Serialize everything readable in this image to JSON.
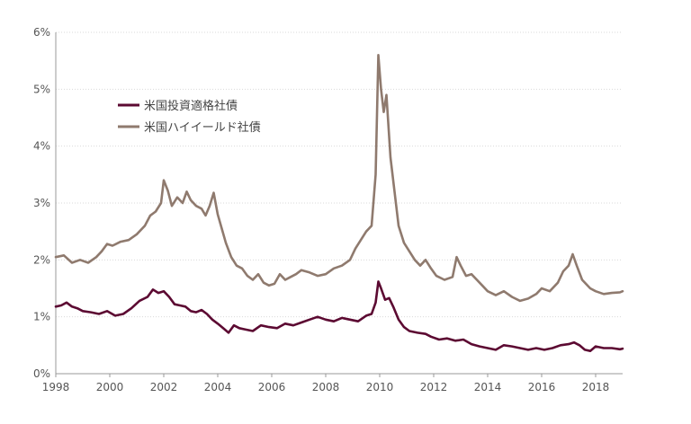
{
  "chart_data": {
    "type": "line",
    "title": "",
    "xlabel": "",
    "ylabel": "",
    "xlim": [
      1998,
      2019
    ],
    "ylim": [
      0,
      6
    ],
    "x_ticks": [
      1998,
      2000,
      2002,
      2004,
      2006,
      2008,
      2010,
      2012,
      2014,
      2016,
      2018
    ],
    "x_tick_labels": [
      "1998",
      "2000",
      "2002",
      "2004",
      "2006",
      "2008",
      "2010",
      "2012",
      "2014",
      "2016",
      "2018"
    ],
    "y_ticks": [
      0,
      1,
      2,
      3,
      4,
      5,
      6
    ],
    "y_tick_labels": [
      "0%",
      "1%",
      "2%",
      "3%",
      "4%",
      "5%",
      "6%"
    ],
    "grid": "horizontal",
    "legend_position": "top-left",
    "series": [
      {
        "name": "米国投資適格社債",
        "color": "#5c0a32",
        "points": [
          [
            1998.0,
            1.18
          ],
          [
            1998.2,
            1.2
          ],
          [
            1998.4,
            1.25
          ],
          [
            1998.6,
            1.18
          ],
          [
            1998.8,
            1.15
          ],
          [
            1999.0,
            1.1
          ],
          [
            1999.3,
            1.08
          ],
          [
            1999.6,
            1.05
          ],
          [
            1999.9,
            1.1
          ],
          [
            2000.2,
            1.02
          ],
          [
            2000.5,
            1.05
          ],
          [
            2000.8,
            1.15
          ],
          [
            2001.1,
            1.28
          ],
          [
            2001.4,
            1.35
          ],
          [
            2001.6,
            1.48
          ],
          [
            2001.8,
            1.42
          ],
          [
            2002.0,
            1.45
          ],
          [
            2002.2,
            1.35
          ],
          [
            2002.4,
            1.22
          ],
          [
            2002.6,
            1.2
          ],
          [
            2002.8,
            1.18
          ],
          [
            2003.0,
            1.1
          ],
          [
            2003.2,
            1.08
          ],
          [
            2003.4,
            1.12
          ],
          [
            2003.6,
            1.05
          ],
          [
            2003.8,
            0.95
          ],
          [
            2004.0,
            0.88
          ],
          [
            2004.2,
            0.8
          ],
          [
            2004.4,
            0.72
          ],
          [
            2004.6,
            0.85
          ],
          [
            2004.8,
            0.8
          ],
          [
            2005.0,
            0.78
          ],
          [
            2005.3,
            0.75
          ],
          [
            2005.6,
            0.85
          ],
          [
            2005.9,
            0.82
          ],
          [
            2006.2,
            0.8
          ],
          [
            2006.5,
            0.88
          ],
          [
            2006.8,
            0.85
          ],
          [
            2007.1,
            0.9
          ],
          [
            2007.4,
            0.95
          ],
          [
            2007.7,
            1.0
          ],
          [
            2008.0,
            0.95
          ],
          [
            2008.3,
            0.92
          ],
          [
            2008.6,
            0.98
          ],
          [
            2008.9,
            0.95
          ],
          [
            2009.2,
            0.92
          ],
          [
            2009.5,
            1.02
          ],
          [
            2009.7,
            1.05
          ],
          [
            2009.85,
            1.25
          ],
          [
            2009.95,
            1.62
          ],
          [
            2010.05,
            1.5
          ],
          [
            2010.2,
            1.3
          ],
          [
            2010.35,
            1.33
          ],
          [
            2010.5,
            1.18
          ],
          [
            2010.7,
            0.95
          ],
          [
            2010.9,
            0.82
          ],
          [
            2011.1,
            0.75
          ],
          [
            2011.4,
            0.72
          ],
          [
            2011.7,
            0.7
          ],
          [
            2011.9,
            0.65
          ],
          [
            2012.2,
            0.6
          ],
          [
            2012.5,
            0.62
          ],
          [
            2012.8,
            0.58
          ],
          [
            2013.1,
            0.6
          ],
          [
            2013.4,
            0.52
          ],
          [
            2013.7,
            0.48
          ],
          [
            2014.0,
            0.45
          ],
          [
            2014.3,
            0.42
          ],
          [
            2014.6,
            0.5
          ],
          [
            2014.9,
            0.48
          ],
          [
            2015.2,
            0.45
          ],
          [
            2015.5,
            0.42
          ],
          [
            2015.8,
            0.45
          ],
          [
            2016.1,
            0.42
          ],
          [
            2016.4,
            0.45
          ],
          [
            2016.7,
            0.5
          ],
          [
            2017.0,
            0.52
          ],
          [
            2017.2,
            0.55
          ],
          [
            2017.4,
            0.5
          ],
          [
            2017.6,
            0.42
          ],
          [
            2017.8,
            0.4
          ],
          [
            2018.0,
            0.48
          ],
          [
            2018.3,
            0.45
          ],
          [
            2018.6,
            0.45
          ],
          [
            2018.9,
            0.43
          ],
          [
            2019.0,
            0.44
          ]
        ]
      },
      {
        "name": "米国ハイイールド社債",
        "color": "#8f7a6e",
        "points": [
          [
            1998.0,
            2.05
          ],
          [
            1998.3,
            2.08
          ],
          [
            1998.6,
            1.95
          ],
          [
            1998.9,
            2.0
          ],
          [
            1999.2,
            1.95
          ],
          [
            1999.5,
            2.05
          ],
          [
            1999.7,
            2.15
          ],
          [
            1999.9,
            2.28
          ],
          [
            2000.1,
            2.25
          ],
          [
            2000.4,
            2.32
          ],
          [
            2000.7,
            2.35
          ],
          [
            2001.0,
            2.45
          ],
          [
            2001.3,
            2.6
          ],
          [
            2001.5,
            2.78
          ],
          [
            2001.7,
            2.85
          ],
          [
            2001.9,
            3.0
          ],
          [
            2002.0,
            3.4
          ],
          [
            2002.15,
            3.22
          ],
          [
            2002.3,
            2.95
          ],
          [
            2002.5,
            3.1
          ],
          [
            2002.7,
            3.0
          ],
          [
            2002.85,
            3.2
          ],
          [
            2003.0,
            3.05
          ],
          [
            2003.2,
            2.95
          ],
          [
            2003.4,
            2.9
          ],
          [
            2003.55,
            2.78
          ],
          [
            2003.7,
            2.95
          ],
          [
            2003.85,
            3.18
          ],
          [
            2004.0,
            2.8
          ],
          [
            2004.15,
            2.55
          ],
          [
            2004.3,
            2.3
          ],
          [
            2004.5,
            2.05
          ],
          [
            2004.7,
            1.9
          ],
          [
            2004.9,
            1.85
          ],
          [
            2005.1,
            1.72
          ],
          [
            2005.3,
            1.65
          ],
          [
            2005.5,
            1.75
          ],
          [
            2005.7,
            1.6
          ],
          [
            2005.9,
            1.55
          ],
          [
            2006.1,
            1.58
          ],
          [
            2006.3,
            1.75
          ],
          [
            2006.5,
            1.65
          ],
          [
            2006.7,
            1.7
          ],
          [
            2006.9,
            1.75
          ],
          [
            2007.1,
            1.82
          ],
          [
            2007.4,
            1.78
          ],
          [
            2007.7,
            1.72
          ],
          [
            2008.0,
            1.75
          ],
          [
            2008.3,
            1.85
          ],
          [
            2008.6,
            1.9
          ],
          [
            2008.9,
            2.0
          ],
          [
            2009.1,
            2.2
          ],
          [
            2009.3,
            2.35
          ],
          [
            2009.5,
            2.5
          ],
          [
            2009.7,
            2.6
          ],
          [
            2009.85,
            3.5
          ],
          [
            2009.95,
            5.6
          ],
          [
            2010.05,
            5.0
          ],
          [
            2010.15,
            4.6
          ],
          [
            2010.25,
            4.9
          ],
          [
            2010.4,
            3.8
          ],
          [
            2010.55,
            3.2
          ],
          [
            2010.7,
            2.6
          ],
          [
            2010.9,
            2.3
          ],
          [
            2011.1,
            2.15
          ],
          [
            2011.3,
            2.0
          ],
          [
            2011.5,
            1.9
          ],
          [
            2011.7,
            2.0
          ],
          [
            2011.9,
            1.85
          ],
          [
            2012.1,
            1.72
          ],
          [
            2012.4,
            1.65
          ],
          [
            2012.7,
            1.7
          ],
          [
            2012.85,
            2.05
          ],
          [
            2013.0,
            1.9
          ],
          [
            2013.2,
            1.72
          ],
          [
            2013.4,
            1.75
          ],
          [
            2013.6,
            1.65
          ],
          [
            2013.8,
            1.55
          ],
          [
            2014.0,
            1.45
          ],
          [
            2014.3,
            1.38
          ],
          [
            2014.6,
            1.45
          ],
          [
            2014.9,
            1.35
          ],
          [
            2015.2,
            1.28
          ],
          [
            2015.5,
            1.32
          ],
          [
            2015.8,
            1.4
          ],
          [
            2016.0,
            1.5
          ],
          [
            2016.3,
            1.45
          ],
          [
            2016.6,
            1.6
          ],
          [
            2016.8,
            1.8
          ],
          [
            2017.0,
            1.9
          ],
          [
            2017.15,
            2.1
          ],
          [
            2017.3,
            1.9
          ],
          [
            2017.5,
            1.65
          ],
          [
            2017.8,
            1.5
          ],
          [
            2018.0,
            1.45
          ],
          [
            2018.3,
            1.4
          ],
          [
            2018.6,
            1.42
          ],
          [
            2018.9,
            1.43
          ],
          [
            2019.0,
            1.45
          ]
        ]
      }
    ]
  }
}
